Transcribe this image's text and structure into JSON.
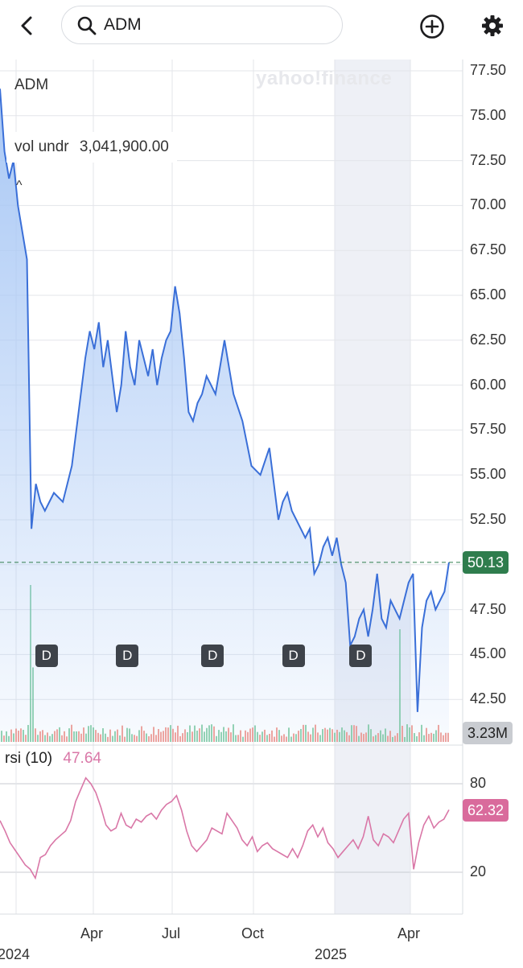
{
  "header": {
    "search_text": "ADM",
    "icons": [
      "back-chevron-icon",
      "search-icon",
      "add-circle-icon",
      "gear-icon"
    ]
  },
  "chart_overlay": {
    "symbol": "ADM",
    "vol_label": "vol undr",
    "vol_value": "3,041,900.00",
    "collapse_glyph": "^",
    "watermark": "yahoo!finance",
    "rsi_name": "rsi (10)",
    "rsi_value": "47.64",
    "current_price_tag": "50.13",
    "volume_tag": "3.23M",
    "rsi_tag": "62.32",
    "dividend_marker": "D"
  },
  "colors": {
    "price_line": "#3a6fd8",
    "price_fill": "#a9c8f5",
    "volume_up": "#74c79a",
    "volume_down": "#ef8a7e",
    "rsi_line": "#d977a7",
    "price_tag_bg": "#2f7d4d",
    "rsi_tag_bg": "#d96b9c",
    "highlight_band": "#eef0f6"
  },
  "chart_data": {
    "type": "line",
    "ylim": [
      40.5,
      78.5
    ],
    "y_ticks": [
      "77.50",
      "75.00",
      "72.50",
      "70.00",
      "67.50",
      "65.00",
      "62.50",
      "60.00",
      "57.50",
      "55.00",
      "52.50",
      "47.50",
      "45.00",
      "42.50"
    ],
    "x_ticks": [
      "Apr",
      "Jul",
      "Oct",
      "Apr"
    ],
    "x_year_ticks": [
      "2024",
      "2025"
    ],
    "rsi_ticks": [
      "80",
      "20"
    ],
    "rsi_range": [
      0,
      100
    ],
    "current_price": 50.13,
    "x_index_max": 100,
    "dividend_x": [
      10,
      28,
      47,
      65,
      80
    ],
    "series": [
      {
        "x": [
          0,
          1,
          2,
          3,
          4,
          5,
          6,
          7,
          8,
          9,
          10,
          12,
          14,
          16,
          17,
          19,
          20,
          21,
          22,
          23,
          24,
          25,
          26,
          27,
          28,
          29,
          30,
          31,
          32,
          33,
          34,
          35,
          36,
          37,
          38,
          39,
          40,
          41,
          42,
          43,
          44,
          45,
          46,
          47,
          48,
          50,
          52,
          54,
          56,
          58,
          60,
          62,
          63,
          64,
          65,
          66,
          67,
          68,
          69,
          70,
          71,
          72,
          73,
          74,
          75,
          76,
          77,
          78,
          79,
          80,
          81,
          82,
          83,
          84,
          85,
          86,
          87,
          88,
          89,
          90,
          91,
          92,
          93,
          94,
          95,
          96,
          97,
          98,
          99,
          100
        ],
        "values": [
          76.5,
          73.0,
          71.5,
          72.5,
          70.0,
          68.5,
          67.0,
          52.0,
          54.5,
          53.5,
          53.0,
          54.0,
          53.5,
          55.5,
          57.5,
          61.5,
          63.0,
          62.0,
          63.5,
          61.0,
          62.5,
          60.5,
          58.5,
          60.0,
          63.0,
          61.0,
          60.0,
          62.5,
          61.5,
          60.5,
          62.0,
          60.0,
          61.5,
          62.5,
          63.0,
          65.5,
          64.0,
          61.5,
          58.5,
          58.0,
          59.0,
          59.5,
          60.5,
          60.0,
          59.5,
          62.5,
          59.5,
          58.0,
          55.5,
          55.0,
          56.5,
          52.5,
          53.5,
          54.0,
          53.0,
          52.5,
          52.0,
          51.5,
          52.0,
          49.5,
          50.0,
          51.0,
          51.5,
          50.5,
          51.5,
          50.0,
          49.0,
          45.5,
          46.0,
          47.0,
          47.5,
          46.0,
          47.5,
          49.5,
          47.0,
          46.5,
          48.0,
          47.5,
          47.0,
          48.0,
          49.0,
          49.5,
          41.8,
          46.5,
          48.0,
          48.5,
          47.5,
          48.0,
          48.5,
          50.13
        ]
      }
    ],
    "rsi_series": {
      "values": [
        55,
        48,
        40,
        35,
        30,
        25,
        22,
        16,
        30,
        32,
        38,
        42,
        45,
        48,
        55,
        68,
        76,
        84,
        80,
        74,
        64,
        52,
        48,
        50,
        60,
        52,
        50,
        56,
        54,
        58,
        60,
        56,
        62,
        66,
        68,
        72,
        62,
        48,
        38,
        34,
        38,
        42,
        50,
        48,
        46,
        60,
        55,
        50,
        42,
        38,
        44,
        34,
        38,
        40,
        36,
        34,
        32,
        30,
        36,
        30,
        38,
        48,
        52,
        44,
        50,
        40,
        36,
        30,
        34,
        38,
        42,
        36,
        44,
        58,
        42,
        38,
        46,
        44,
        40,
        48,
        56,
        60,
        22,
        40,
        52,
        58,
        50,
        54,
        56,
        62.32
      ]
    }
  }
}
